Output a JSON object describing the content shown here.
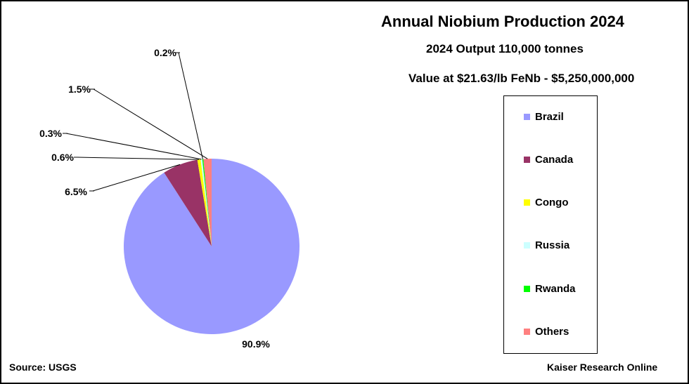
{
  "chart_data": {
    "type": "pie",
    "title": "Annual Niobium Production 2024",
    "subtitle": "2024 Output 110,000 tonnes",
    "value_line": "Value at $21.63/lb FeNb  -  $5,250,000,000",
    "slices": [
      {
        "name": "Brazil",
        "value": 90.9,
        "label": "90.9%",
        "color": "#9999ff"
      },
      {
        "name": "Canada",
        "value": 6.5,
        "label": "6.5%",
        "color": "#993366"
      },
      {
        "name": "Congo",
        "value": 0.6,
        "label": "0.6%",
        "color": "#ffff00"
      },
      {
        "name": "Russia",
        "value": 0.3,
        "label": "0.3%",
        "color": "#ccffff"
      },
      {
        "name": "Rwanda",
        "value": 0.2,
        "label": "0.2%",
        "color": "#00ff00"
      },
      {
        "name": "Others",
        "value": 1.5,
        "label": "1.5%",
        "color": "#ff8080"
      }
    ],
    "legend_placement": "right",
    "source": "Source: USGS",
    "credit": "Kaiser Research Online"
  }
}
